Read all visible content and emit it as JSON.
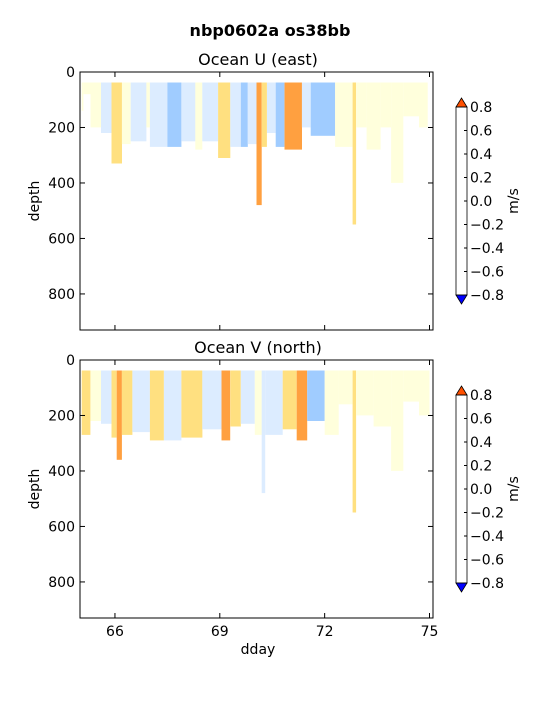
{
  "figure": {
    "suptitle": "nbp0602a os38bb"
  },
  "colorbar": {
    "label": "m/s",
    "ticks": [
      "0.8",
      "0.6",
      "0.4",
      "0.2",
      "0.0",
      "−0.2",
      "−0.4",
      "−0.6",
      "−0.8"
    ],
    "levels": [
      -0.8,
      -0.6,
      -0.4,
      -0.2,
      0.0,
      0.2,
      0.4,
      0.6,
      0.8
    ],
    "colors": [
      "#0000ff",
      "#4080ff",
      "#a0ccff",
      "#dcecff",
      "#ffffdc",
      "#ffe080",
      "#ffa040",
      "#ff5000"
    ]
  },
  "chart_data": [
    {
      "type": "heatmap",
      "title": "Ocean U (east)",
      "xlabel": "",
      "ylabel": "depth",
      "xlim": [
        65,
        75.1
      ],
      "ylim": [
        930,
        0
      ],
      "yticks": [
        "0",
        "200",
        "400",
        "600",
        "800"
      ],
      "ytick_values": [
        0,
        200,
        400,
        600,
        800
      ],
      "xticks": [],
      "xtick_values": [
        66,
        69,
        72,
        75
      ],
      "colorbar_label": "m/s",
      "columns": [
        {
          "x0": 65.05,
          "x1": 65.1,
          "v": 0.1,
          "bottom": 140
        },
        {
          "x0": 65.1,
          "x1": 65.3,
          "v": 0.0,
          "bottom": 80
        },
        {
          "x0": 65.3,
          "x1": 65.6,
          "v": 0.1,
          "bottom": 200
        },
        {
          "x0": 65.6,
          "x1": 65.9,
          "v": -0.1,
          "bottom": 220
        },
        {
          "x0": 65.9,
          "x1": 66.2,
          "v": 0.3,
          "bottom": 330
        },
        {
          "x0": 66.2,
          "x1": 66.45,
          "v": 0.1,
          "bottom": 260
        },
        {
          "x0": 66.45,
          "x1": 66.9,
          "v": -0.1,
          "bottom": 250
        },
        {
          "x0": 66.9,
          "x1": 67.0,
          "v": 0.1,
          "bottom": 200
        },
        {
          "x0": 67.0,
          "x1": 67.5,
          "v": -0.1,
          "bottom": 270
        },
        {
          "x0": 67.5,
          "x1": 67.9,
          "v": -0.3,
          "bottom": 270
        },
        {
          "x0": 67.9,
          "x1": 68.3,
          "v": -0.1,
          "bottom": 250
        },
        {
          "x0": 68.3,
          "x1": 68.5,
          "v": 0.1,
          "bottom": 280
        },
        {
          "x0": 68.5,
          "x1": 68.95,
          "v": -0.1,
          "bottom": 250
        },
        {
          "x0": 68.95,
          "x1": 69.3,
          "v": 0.3,
          "bottom": 310
        },
        {
          "x0": 69.3,
          "x1": 69.6,
          "v": -0.1,
          "bottom": 270
        },
        {
          "x0": 69.6,
          "x1": 69.8,
          "v": -0.3,
          "bottom": 270
        },
        {
          "x0": 69.8,
          "x1": 70.05,
          "v": -0.1,
          "bottom": 260
        },
        {
          "x0": 70.05,
          "x1": 70.2,
          "v": 0.5,
          "bottom": 480
        },
        {
          "x0": 70.2,
          "x1": 70.35,
          "v": 0.3,
          "bottom": 270
        },
        {
          "x0": 70.35,
          "x1": 70.6,
          "v": -0.1,
          "bottom": 220
        },
        {
          "x0": 70.6,
          "x1": 70.85,
          "v": -0.3,
          "bottom": 270
        },
        {
          "x0": 70.85,
          "x1": 71.35,
          "v": 0.5,
          "bottom": 280
        },
        {
          "x0": 71.35,
          "x1": 71.6,
          "v": -0.1,
          "bottom": 200
        },
        {
          "x0": 71.6,
          "x1": 72.3,
          "v": -0.3,
          "bottom": 230
        },
        {
          "x0": 72.3,
          "x1": 72.8,
          "v": 0.1,
          "bottom": 270
        },
        {
          "x0": 72.8,
          "x1": 72.9,
          "v": 0.3,
          "bottom": 550
        },
        {
          "x0": 72.9,
          "x1": 73.2,
          "v": 0.0,
          "bottom": 200
        },
        {
          "x0": 73.2,
          "x1": 73.6,
          "v": 0.1,
          "bottom": 280
        },
        {
          "x0": 73.6,
          "x1": 73.9,
          "v": 0.0,
          "bottom": 200
        },
        {
          "x0": 73.9,
          "x1": 74.25,
          "v": 0.1,
          "bottom": 400
        },
        {
          "x0": 74.25,
          "x1": 74.7,
          "v": 0.0,
          "bottom": 160
        },
        {
          "x0": 74.7,
          "x1": 74.95,
          "v": 0.1,
          "bottom": 200
        }
      ]
    },
    {
      "type": "heatmap",
      "title": "Ocean V (north)",
      "xlabel": "dday",
      "ylabel": "depth",
      "xlim": [
        65,
        75.1
      ],
      "ylim": [
        930,
        0
      ],
      "yticks": [
        "0",
        "200",
        "400",
        "600",
        "800"
      ],
      "ytick_values": [
        0,
        200,
        400,
        600,
        800
      ],
      "xticks": [
        "66",
        "69",
        "72",
        "75"
      ],
      "xtick_values": [
        66,
        69,
        72,
        75
      ],
      "colorbar_label": "m/s",
      "columns": [
        {
          "x0": 65.05,
          "x1": 65.3,
          "v": 0.3,
          "bottom": 270
        },
        {
          "x0": 65.3,
          "x1": 65.6,
          "v": 0.1,
          "bottom": 220
        },
        {
          "x0": 65.6,
          "x1": 65.9,
          "v": -0.1,
          "bottom": 230
        },
        {
          "x0": 65.9,
          "x1": 66.05,
          "v": 0.3,
          "bottom": 280
        },
        {
          "x0": 66.05,
          "x1": 66.2,
          "v": 0.5,
          "bottom": 360
        },
        {
          "x0": 66.2,
          "x1": 66.5,
          "v": 0.3,
          "bottom": 270
        },
        {
          "x0": 66.5,
          "x1": 67.0,
          "v": -0.1,
          "bottom": 260
        },
        {
          "x0": 67.0,
          "x1": 67.4,
          "v": 0.3,
          "bottom": 290
        },
        {
          "x0": 67.4,
          "x1": 67.9,
          "v": -0.1,
          "bottom": 290
        },
        {
          "x0": 67.9,
          "x1": 68.5,
          "v": 0.3,
          "bottom": 280
        },
        {
          "x0": 68.5,
          "x1": 69.05,
          "v": -0.1,
          "bottom": 250
        },
        {
          "x0": 69.05,
          "x1": 69.3,
          "v": 0.5,
          "bottom": 290
        },
        {
          "x0": 69.3,
          "x1": 69.6,
          "v": 0.3,
          "bottom": 240
        },
        {
          "x0": 69.6,
          "x1": 70.0,
          "v": -0.1,
          "bottom": 230
        },
        {
          "x0": 70.0,
          "x1": 70.2,
          "v": 0.1,
          "bottom": 270
        },
        {
          "x0": 70.2,
          "x1": 70.3,
          "v": -0.1,
          "bottom": 480
        },
        {
          "x0": 70.3,
          "x1": 70.8,
          "v": -0.1,
          "bottom": 270
        },
        {
          "x0": 70.8,
          "x1": 71.2,
          "v": 0.3,
          "bottom": 250
        },
        {
          "x0": 71.2,
          "x1": 71.5,
          "v": 0.5,
          "bottom": 290
        },
        {
          "x0": 71.5,
          "x1": 72.0,
          "v": -0.3,
          "bottom": 220
        },
        {
          "x0": 72.0,
          "x1": 72.4,
          "v": 0.1,
          "bottom": 270
        },
        {
          "x0": 72.4,
          "x1": 72.8,
          "v": 0.0,
          "bottom": 160
        },
        {
          "x0": 72.8,
          "x1": 72.9,
          "v": 0.3,
          "bottom": 550
        },
        {
          "x0": 72.9,
          "x1": 73.4,
          "v": 0.0,
          "bottom": 200
        },
        {
          "x0": 73.4,
          "x1": 73.9,
          "v": 0.1,
          "bottom": 240
        },
        {
          "x0": 73.9,
          "x1": 74.25,
          "v": 0.1,
          "bottom": 400
        },
        {
          "x0": 74.25,
          "x1": 74.7,
          "v": 0.0,
          "bottom": 150
        },
        {
          "x0": 74.7,
          "x1": 75.0,
          "v": 0.1,
          "bottom": 200
        }
      ]
    }
  ]
}
